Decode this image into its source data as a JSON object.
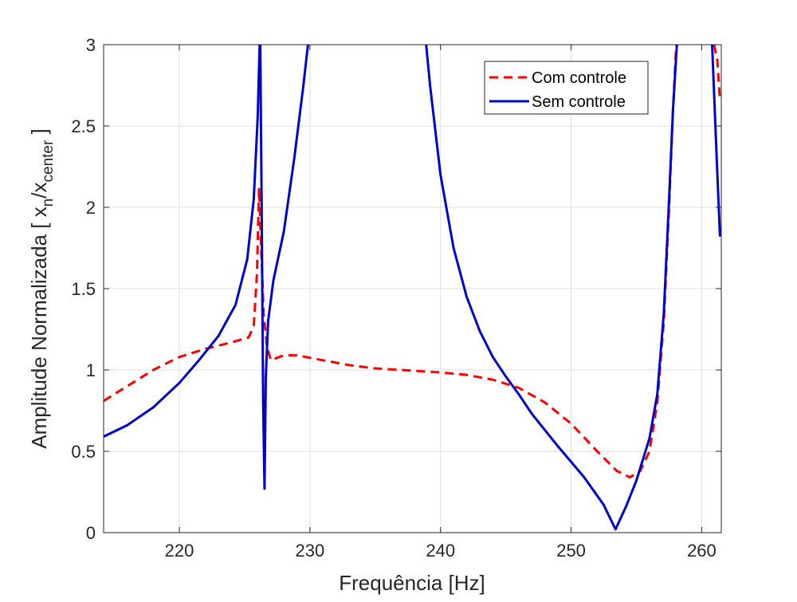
{
  "chart_data": {
    "type": "line",
    "title": "",
    "xlabel": "Frequência [Hz]",
    "ylabel": {
      "prefix": "Amplitude Normalizada [ x",
      "sub1": "n",
      "mid": "/x",
      "sub2": "center",
      "suffix": " ]"
    },
    "xlim": [
      214.2,
      261.5
    ],
    "ylim": [
      0,
      3
    ],
    "xticks": [
      220,
      230,
      240,
      250,
      260
    ],
    "xtick_labels": [
      "220",
      "230",
      "240",
      "250",
      "260"
    ],
    "yticks": [
      0,
      0.5,
      1,
      1.5,
      2,
      2.5,
      3
    ],
    "ytick_labels": [
      "0",
      "0.5",
      "1",
      "1.5",
      "2",
      "2.5",
      "3"
    ],
    "grid": true,
    "legend_position": "top-right",
    "series": [
      {
        "name": "Com controle",
        "color": "#ff0000",
        "style": "dashed",
        "points": [
          [
            214.2,
            0.81
          ],
          [
            216,
            0.9
          ],
          [
            218,
            1.0
          ],
          [
            220,
            1.08
          ],
          [
            222,
            1.13
          ],
          [
            224,
            1.17
          ],
          [
            225.3,
            1.2
          ],
          [
            225.7,
            1.27
          ],
          [
            225.95,
            1.6
          ],
          [
            226.1,
            2.12
          ],
          [
            226.25,
            1.8
          ],
          [
            226.45,
            1.35
          ],
          [
            226.7,
            1.15
          ],
          [
            227.0,
            1.06
          ],
          [
            228.0,
            1.09
          ],
          [
            229,
            1.09
          ],
          [
            231,
            1.06
          ],
          [
            233,
            1.03
          ],
          [
            235,
            1.01
          ],
          [
            237,
            1.0
          ],
          [
            240,
            0.985
          ],
          [
            242,
            0.97
          ],
          [
            244,
            0.94
          ],
          [
            246,
            0.89
          ],
          [
            248,
            0.8
          ],
          [
            250,
            0.67
          ],
          [
            252,
            0.5
          ],
          [
            253.5,
            0.38
          ],
          [
            254.5,
            0.34
          ],
          [
            255.3,
            0.38
          ],
          [
            256,
            0.5
          ],
          [
            256.6,
            0.8
          ],
          [
            257.1,
            1.3
          ],
          [
            257.5,
            2.0
          ],
          [
            257.8,
            2.6
          ],
          [
            258.05,
            3.0
          ]
        ]
      },
      {
        "name": "Com controle",
        "color": "#ff0000",
        "style": "dashed",
        "points": [
          [
            260.95,
            3.0
          ],
          [
            261.2,
            2.9
          ],
          [
            261.4,
            2.65
          ]
        ]
      },
      {
        "name": "Sem controle",
        "color": "#0000cd",
        "style": "solid",
        "points": [
          [
            214.2,
            0.59
          ],
          [
            216,
            0.66
          ],
          [
            218,
            0.77
          ],
          [
            220,
            0.92
          ],
          [
            221.5,
            1.06
          ],
          [
            223,
            1.21
          ],
          [
            224.3,
            1.4
          ],
          [
            225.2,
            1.68
          ],
          [
            225.7,
            2.05
          ],
          [
            226.0,
            2.55
          ],
          [
            226.15,
            3.0
          ]
        ]
      },
      {
        "name": "Sem controle",
        "color": "#0000cd",
        "style": "solid",
        "points": [
          [
            226.2,
            3.0
          ],
          [
            226.3,
            2.0
          ],
          [
            226.42,
            0.8
          ],
          [
            226.52,
            0.27
          ],
          [
            226.62,
            0.95
          ],
          [
            226.8,
            1.3
          ],
          [
            227.2,
            1.55
          ],
          [
            228,
            1.85
          ],
          [
            228.8,
            2.3
          ],
          [
            229.5,
            2.75
          ],
          [
            229.85,
            3.0
          ]
        ]
      },
      {
        "name": "Sem controle",
        "color": "#0000cd",
        "style": "solid",
        "points": [
          [
            238.9,
            3.0
          ],
          [
            239.2,
            2.75
          ],
          [
            240,
            2.2
          ],
          [
            241,
            1.75
          ],
          [
            242,
            1.45
          ],
          [
            243,
            1.24
          ],
          [
            244,
            1.08
          ],
          [
            245,
            0.96
          ],
          [
            246,
            0.85
          ],
          [
            247,
            0.73
          ],
          [
            249,
            0.53
          ],
          [
            251,
            0.34
          ],
          [
            252.5,
            0.17
          ],
          [
            253.4,
            0.02
          ],
          [
            254.2,
            0.16
          ],
          [
            255,
            0.32
          ],
          [
            256,
            0.58
          ],
          [
            256.6,
            0.85
          ],
          [
            257.1,
            1.35
          ],
          [
            257.5,
            2.05
          ],
          [
            257.8,
            2.6
          ],
          [
            258.1,
            3.0
          ]
        ]
      },
      {
        "name": "Sem controle",
        "color": "#0000cd",
        "style": "solid",
        "points": [
          [
            260.8,
            3.0
          ],
          [
            261.0,
            2.6
          ],
          [
            261.2,
            2.2
          ],
          [
            261.4,
            1.82
          ]
        ]
      }
    ],
    "legend": [
      {
        "label": "Com controle",
        "color": "#ff0000",
        "style": "dashed"
      },
      {
        "label": "Sem controle",
        "color": "#0000cd",
        "style": "solid"
      }
    ]
  }
}
